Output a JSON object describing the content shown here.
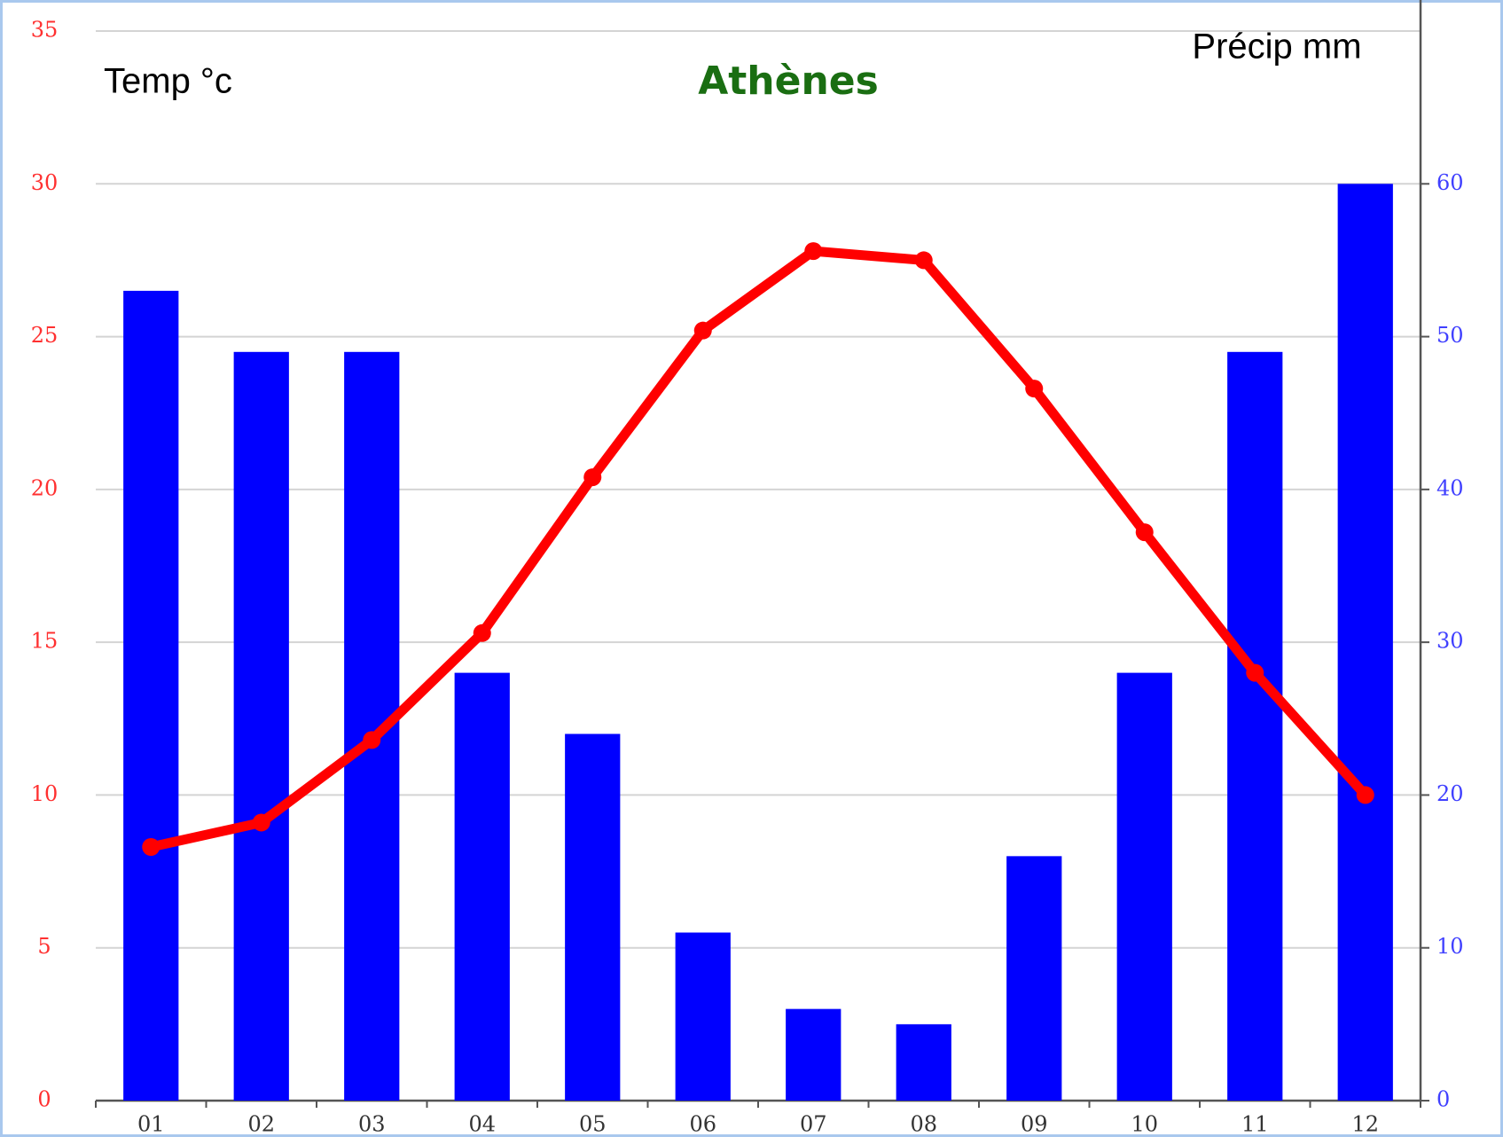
{
  "chart_data": {
    "type": "combo",
    "title": "Athènes",
    "y_label": "Temp °c",
    "y2_label": "Précip mm",
    "categories": [
      "01",
      "02",
      "03",
      "04",
      "05",
      "06",
      "07",
      "08",
      "09",
      "10",
      "11",
      "12"
    ],
    "series": [
      {
        "name": "Précip mm",
        "type": "bar",
        "axis": "y2",
        "color": "#0000ff",
        "values": [
          53,
          49,
          49,
          28,
          24,
          11,
          6,
          5,
          16,
          28,
          49,
          60
        ]
      },
      {
        "name": "Temp °c",
        "type": "line",
        "axis": "y",
        "color": "#ff0000",
        "values": [
          8.3,
          9.1,
          11.8,
          15.3,
          20.4,
          25.2,
          27.8,
          27.5,
          23.3,
          18.6,
          14.0,
          10.0
        ]
      }
    ],
    "ylim": [
      0,
      35
    ],
    "yticks": [
      0,
      5,
      10,
      15,
      20,
      25,
      30,
      35
    ],
    "ytick_color": "#ff3030",
    "y2lim": [
      0,
      70
    ],
    "y2ticks": [
      0,
      10,
      20,
      30,
      40,
      50,
      60
    ],
    "y2tick_color": "#4040ff",
    "title_color": "#1a6e12",
    "grid": true
  }
}
